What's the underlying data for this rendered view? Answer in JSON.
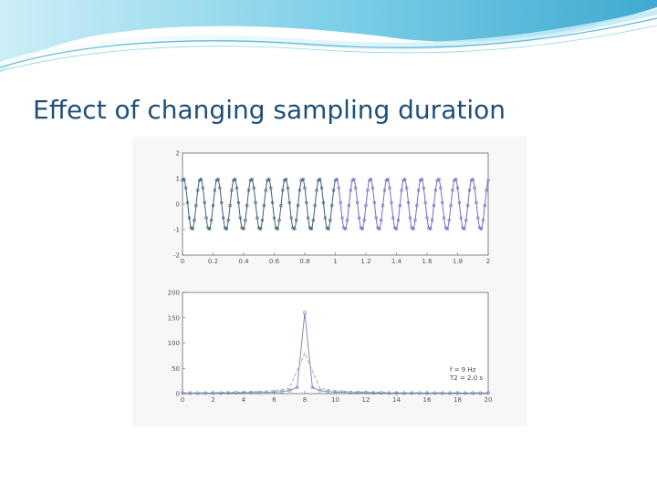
{
  "slide": {
    "title": "Effect of changing sampling duration",
    "accent_color": "#1f4e79",
    "header_colors": [
      "#3fa9d0",
      "#8fd6ea",
      "#cdeef7"
    ]
  },
  "chart_data": [
    {
      "type": "line",
      "xlim": [
        0,
        2
      ],
      "ylim": [
        -2,
        2
      ],
      "x_ticks": [
        0,
        0.2,
        0.4,
        0.6,
        0.8,
        1,
        1.2,
        1.4,
        1.6,
        1.8,
        2
      ],
      "x_tick_labels": [
        "0",
        "0.2",
        "0.4",
        "0.6",
        "0.8",
        "1",
        "1.2",
        "1.4",
        "1.6",
        "1.8",
        "2"
      ],
      "y_ticks": [
        -2,
        -1,
        0,
        1,
        2
      ],
      "y_tick_labels": [
        "-2",
        "-1",
        "0",
        "1",
        "2"
      ],
      "signal_frequency_hz": 9,
      "amplitude": 1,
      "segments": [
        {
          "x_range": [
            0,
            1
          ],
          "color": "#3b5f7a"
        },
        {
          "x_range": [
            1,
            2
          ],
          "color": "#7b68c8"
        }
      ],
      "grid": false
    },
    {
      "type": "line",
      "xlim": [
        0,
        20
      ],
      "ylim": [
        0,
        200
      ],
      "x_ticks": [
        0,
        2,
        4,
        6,
        8,
        10,
        12,
        14,
        16,
        18,
        20
      ],
      "x_tick_labels": [
        "0",
        "2",
        "4",
        "6",
        "8",
        "10",
        "12",
        "14",
        "16",
        "18",
        "20"
      ],
      "y_ticks": [
        0,
        50,
        100,
        150,
        200
      ],
      "y_tick_labels": [
        "0",
        "50",
        "100",
        "150",
        "200"
      ],
      "series": [
        {
          "color": "#6e86b8",
          "style": "solid with circle markers",
          "x": [
            0,
            0.5,
            1,
            1.5,
            2,
            2.5,
            3,
            3.5,
            4,
            4.5,
            5,
            5.5,
            6,
            6.5,
            7,
            7.5,
            8,
            8.5,
            9,
            9.5,
            10,
            10.5,
            11,
            11.5,
            12,
            12.5,
            13,
            13.5,
            14,
            14.5,
            15,
            15.5,
            16,
            16.5,
            17,
            17.5,
            18,
            18.5,
            19,
            19.5,
            20
          ],
          "y": [
            1,
            1,
            1,
            1,
            1,
            1,
            1.5,
            1.5,
            2,
            2,
            2,
            2.5,
            3,
            4,
            6,
            12,
            160,
            12,
            6,
            4,
            3,
            2.5,
            2,
            2,
            2,
            1.5,
            1.5,
            1,
            1,
            1,
            1,
            1,
            1,
            1,
            1,
            1,
            1,
            1,
            1,
            1,
            1
          ]
        },
        {
          "color": "#9aa7b2",
          "style": "dashed",
          "x": [
            0,
            1,
            2,
            3,
            4,
            5,
            6,
            7,
            8,
            9,
            10,
            11,
            12,
            13,
            14,
            15,
            16,
            17,
            18,
            19,
            20
          ],
          "y": [
            2,
            2,
            2,
            3,
            3,
            4,
            6,
            10,
            80,
            10,
            6,
            4,
            3,
            3,
            2,
            2,
            2,
            2,
            2,
            2,
            2
          ]
        }
      ],
      "annotations": [
        "f = 9 Hz",
        "T2 = 2.0 s"
      ],
      "grid": false
    }
  ]
}
